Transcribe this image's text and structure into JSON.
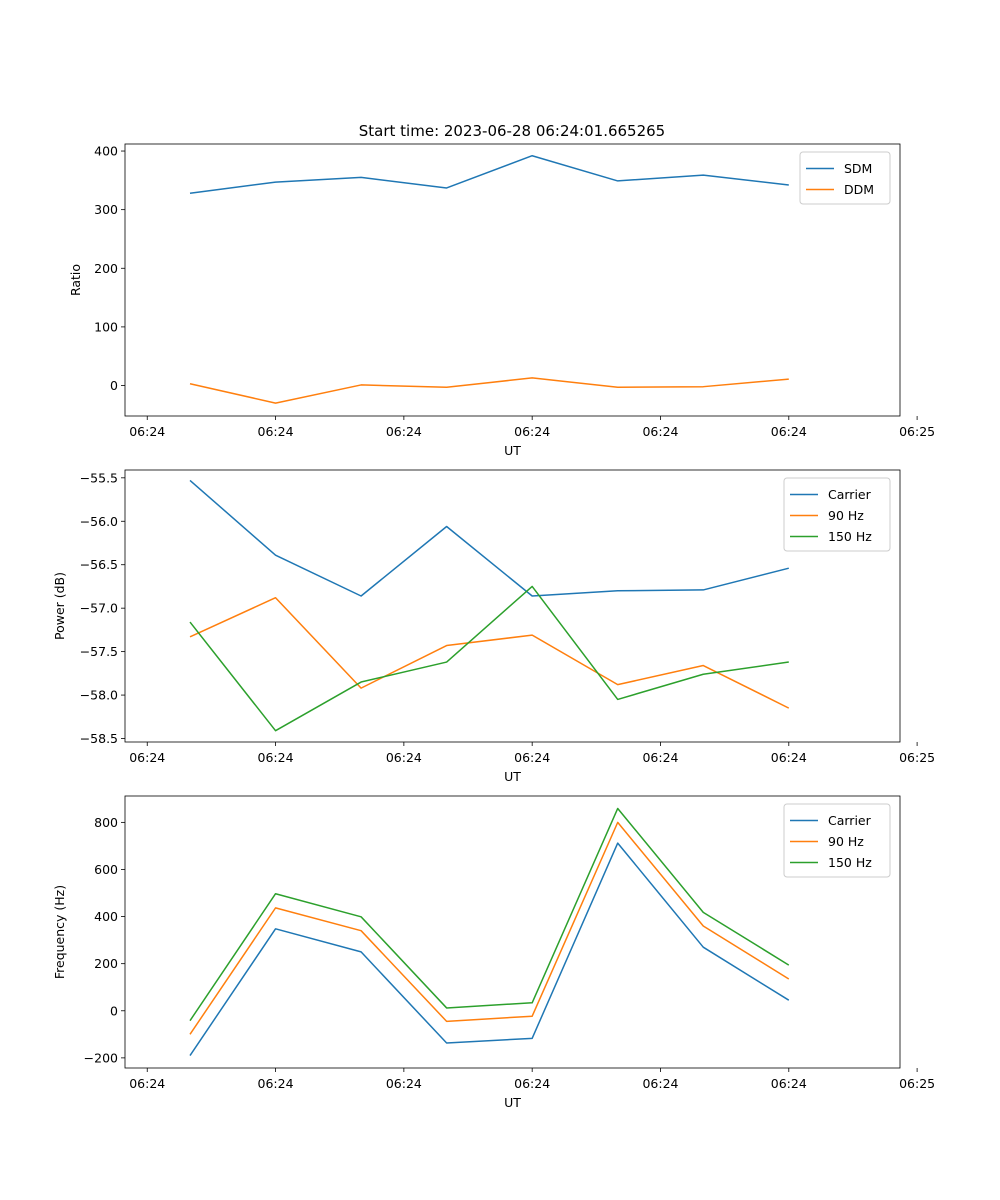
{
  "figure": {
    "title": "Start time: 2023-06-28 06:24:01.665265",
    "xtick_labels": [
      "06:24",
      "06:24",
      "06:24",
      "06:24",
      "06:24",
      "06:24",
      "06:25"
    ]
  },
  "colors": {
    "blue": "#1f77b4",
    "orange": "#ff7f0e",
    "green": "#2ca02c"
  },
  "chart_data": [
    {
      "type": "line",
      "title": "Start time: 2023-06-28 06:24:01.665265",
      "xlabel": "UT",
      "ylabel": "Ratio",
      "x": [
        1,
        2,
        3,
        4,
        5,
        6,
        7,
        8
      ],
      "xlim": [
        0.24,
        9.3
      ],
      "xtick_values": [
        0.5,
        2,
        3.5,
        5,
        6.5,
        8,
        9.5
      ],
      "xtick_labels": [
        "06:24",
        "06:24",
        "06:24",
        "06:24",
        "06:24",
        "06:24",
        "06:25"
      ],
      "ylim": [
        -52,
        412
      ],
      "yticks": [
        0,
        100,
        200,
        300,
        400
      ],
      "ytick_labels": [
        "0",
        "100",
        "200",
        "300",
        "400"
      ],
      "legend": "top-right",
      "series": [
        {
          "name": "SDM",
          "color": "#1f77b4",
          "values": [
            328,
            347,
            355,
            337,
            392,
            349,
            359,
            342
          ]
        },
        {
          "name": "DDM",
          "color": "#ff7f0e",
          "values": [
            3,
            -30,
            1,
            -3,
            13,
            -3,
            -2,
            11
          ]
        }
      ]
    },
    {
      "type": "line",
      "xlabel": "UT",
      "ylabel": "Power (dB)",
      "x": [
        1,
        2,
        3,
        4,
        5,
        6,
        7,
        8
      ],
      "xlim": [
        0.24,
        9.3
      ],
      "xtick_values": [
        0.5,
        2,
        3.5,
        5,
        6.5,
        8,
        9.5
      ],
      "xtick_labels": [
        "06:24",
        "06:24",
        "06:24",
        "06:24",
        "06:24",
        "06:24",
        "06:25"
      ],
      "ylim": [
        -58.54,
        -55.41
      ],
      "yticks": [
        -55.5,
        -56.0,
        -56.5,
        -57.0,
        -57.5,
        -58.0,
        -58.5
      ],
      "ytick_labels": [
        "−55.5",
        "−56.0",
        "−56.5",
        "−57.0",
        "−57.5",
        "−58.0",
        "−58.5"
      ],
      "legend": "top-right",
      "series": [
        {
          "name": "Carrier",
          "color": "#1f77b4",
          "values": [
            -55.53,
            -56.39,
            -56.86,
            -56.06,
            -56.86,
            -56.8,
            -56.79,
            -56.54
          ]
        },
        {
          "name": "90 Hz",
          "color": "#ff7f0e",
          "values": [
            -57.33,
            -56.88,
            -57.92,
            -57.43,
            -57.31,
            -57.88,
            -57.66,
            -58.15
          ]
        },
        {
          "name": "150 Hz",
          "color": "#2ca02c",
          "values": [
            -57.16,
            -58.41,
            -57.85,
            -57.62,
            -56.75,
            -58.05,
            -57.76,
            -57.62
          ]
        }
      ]
    },
    {
      "type": "line",
      "xlabel": "UT",
      "ylabel": "Frequency (Hz)",
      "x": [
        1,
        2,
        3,
        4,
        5,
        6,
        7,
        8
      ],
      "xlim": [
        0.24,
        9.3
      ],
      "xtick_values": [
        0.5,
        2,
        3.5,
        5,
        6.5,
        8,
        9.5
      ],
      "xtick_labels": [
        "06:24",
        "06:24",
        "06:24",
        "06:24",
        "06:24",
        "06:24",
        "06:25"
      ],
      "ylim": [
        -243,
        912
      ],
      "yticks": [
        -200,
        0,
        200,
        400,
        600,
        800
      ],
      "ytick_labels": [
        "−200",
        "0",
        "200",
        "400",
        "600",
        "800"
      ],
      "legend": "top-right",
      "series": [
        {
          "name": "Carrier",
          "color": "#1f77b4",
          "values": [
            -190,
            348,
            250,
            -137,
            -117,
            712,
            270,
            45
          ]
        },
        {
          "name": "90 Hz",
          "color": "#ff7f0e",
          "values": [
            -100,
            437,
            340,
            -45,
            -23,
            800,
            360,
            135
          ]
        },
        {
          "name": "150 Hz",
          "color": "#2ca02c",
          "values": [
            -42,
            497,
            399,
            12,
            34,
            859,
            418,
            194
          ]
        }
      ]
    }
  ]
}
